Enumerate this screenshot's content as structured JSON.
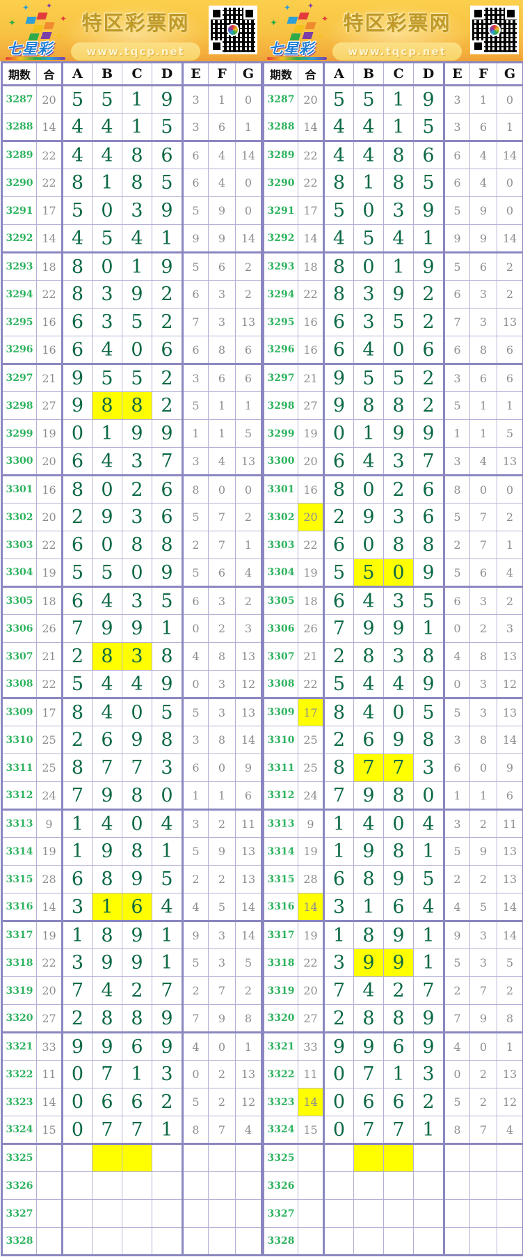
{
  "banner": {
    "site_title": "特区彩票网",
    "site_url": "www.tqcp.net",
    "logo_text": "七星彩"
  },
  "table": {
    "headers": {
      "period": "期数",
      "sum": "合",
      "cols": [
        "A",
        "B",
        "C",
        "D",
        "E",
        "F",
        "G"
      ]
    },
    "group_starts": [
      "3289",
      "3293",
      "3297",
      "3301",
      "3305",
      "3309",
      "3313",
      "3317",
      "3321",
      "3325"
    ],
    "rows": [
      {
        "period": "3287",
        "sum": "20",
        "vals": [
          "5",
          "5",
          "1",
          "9",
          "3",
          "1",
          "0"
        ]
      },
      {
        "period": "3288",
        "sum": "14",
        "vals": [
          "4",
          "4",
          "1",
          "5",
          "3",
          "6",
          "1"
        ]
      },
      {
        "period": "3289",
        "sum": "22",
        "vals": [
          "4",
          "4",
          "8",
          "6",
          "6",
          "4",
          "14"
        ]
      },
      {
        "period": "3290",
        "sum": "22",
        "vals": [
          "8",
          "1",
          "8",
          "5",
          "6",
          "4",
          "0"
        ]
      },
      {
        "period": "3291",
        "sum": "17",
        "vals": [
          "5",
          "0",
          "3",
          "9",
          "5",
          "9",
          "0"
        ]
      },
      {
        "period": "3292",
        "sum": "14",
        "vals": [
          "4",
          "5",
          "4",
          "1",
          "9",
          "9",
          "14"
        ]
      },
      {
        "period": "3293",
        "sum": "18",
        "vals": [
          "8",
          "0",
          "1",
          "9",
          "5",
          "6",
          "2"
        ]
      },
      {
        "period": "3294",
        "sum": "22",
        "vals": [
          "8",
          "3",
          "9",
          "2",
          "6",
          "3",
          "2"
        ]
      },
      {
        "period": "3295",
        "sum": "16",
        "vals": [
          "6",
          "3",
          "5",
          "2",
          "7",
          "3",
          "13"
        ]
      },
      {
        "period": "3296",
        "sum": "16",
        "vals": [
          "6",
          "4",
          "0",
          "6",
          "6",
          "8",
          "6"
        ]
      },
      {
        "period": "3297",
        "sum": "21",
        "vals": [
          "9",
          "5",
          "5",
          "2",
          "3",
          "6",
          "6"
        ]
      },
      {
        "period": "3298",
        "sum": "27",
        "vals": [
          "9",
          "8",
          "8",
          "2",
          "5",
          "1",
          "1"
        ]
      },
      {
        "period": "3299",
        "sum": "19",
        "vals": [
          "0",
          "1",
          "9",
          "9",
          "1",
          "1",
          "5"
        ]
      },
      {
        "period": "3300",
        "sum": "20",
        "vals": [
          "6",
          "4",
          "3",
          "7",
          "3",
          "4",
          "13"
        ]
      },
      {
        "period": "3301",
        "sum": "16",
        "vals": [
          "8",
          "0",
          "2",
          "6",
          "8",
          "0",
          "0"
        ]
      },
      {
        "period": "3302",
        "sum": "20",
        "vals": [
          "2",
          "9",
          "3",
          "6",
          "5",
          "7",
          "2"
        ]
      },
      {
        "period": "3303",
        "sum": "22",
        "vals": [
          "6",
          "0",
          "8",
          "8",
          "2",
          "7",
          "1"
        ]
      },
      {
        "period": "3304",
        "sum": "19",
        "vals": [
          "5",
          "5",
          "0",
          "9",
          "5",
          "6",
          "4"
        ]
      },
      {
        "period": "3305",
        "sum": "18",
        "vals": [
          "6",
          "4",
          "3",
          "5",
          "6",
          "3",
          "2"
        ]
      },
      {
        "period": "3306",
        "sum": "26",
        "vals": [
          "7",
          "9",
          "9",
          "1",
          "0",
          "2",
          "3"
        ]
      },
      {
        "period": "3307",
        "sum": "21",
        "vals": [
          "2",
          "8",
          "3",
          "8",
          "4",
          "8",
          "13"
        ]
      },
      {
        "period": "3308",
        "sum": "22",
        "vals": [
          "5",
          "4",
          "4",
          "9",
          "0",
          "3",
          "12"
        ]
      },
      {
        "period": "3309",
        "sum": "17",
        "vals": [
          "8",
          "4",
          "0",
          "5",
          "5",
          "3",
          "13"
        ]
      },
      {
        "period": "3310",
        "sum": "25",
        "vals": [
          "2",
          "6",
          "9",
          "8",
          "3",
          "8",
          "14"
        ]
      },
      {
        "period": "3311",
        "sum": "25",
        "vals": [
          "8",
          "7",
          "7",
          "3",
          "6",
          "0",
          "9"
        ]
      },
      {
        "period": "3312",
        "sum": "24",
        "vals": [
          "7",
          "9",
          "8",
          "0",
          "1",
          "1",
          "6"
        ]
      },
      {
        "period": "3313",
        "sum": "9",
        "vals": [
          "1",
          "4",
          "0",
          "4",
          "3",
          "2",
          "11"
        ]
      },
      {
        "period": "3314",
        "sum": "19",
        "vals": [
          "1",
          "9",
          "8",
          "1",
          "5",
          "9",
          "13"
        ]
      },
      {
        "period": "3315",
        "sum": "28",
        "vals": [
          "6",
          "8",
          "9",
          "5",
          "2",
          "2",
          "13"
        ]
      },
      {
        "period": "3316",
        "sum": "14",
        "vals": [
          "3",
          "1",
          "6",
          "4",
          "4",
          "5",
          "14"
        ]
      },
      {
        "period": "3317",
        "sum": "19",
        "vals": [
          "1",
          "8",
          "9",
          "1",
          "9",
          "3",
          "14"
        ]
      },
      {
        "period": "3318",
        "sum": "22",
        "vals": [
          "3",
          "9",
          "9",
          "1",
          "5",
          "3",
          "5"
        ]
      },
      {
        "period": "3319",
        "sum": "20",
        "vals": [
          "7",
          "4",
          "2",
          "7",
          "2",
          "7",
          "2"
        ]
      },
      {
        "period": "3320",
        "sum": "27",
        "vals": [
          "2",
          "8",
          "8",
          "9",
          "7",
          "9",
          "8"
        ]
      },
      {
        "period": "3321",
        "sum": "33",
        "vals": [
          "9",
          "9",
          "6",
          "9",
          "4",
          "0",
          "1"
        ]
      },
      {
        "period": "3322",
        "sum": "11",
        "vals": [
          "0",
          "7",
          "1",
          "3",
          "0",
          "2",
          "13"
        ]
      },
      {
        "period": "3323",
        "sum": "14",
        "vals": [
          "0",
          "6",
          "6",
          "2",
          "5",
          "2",
          "12"
        ]
      },
      {
        "period": "3324",
        "sum": "15",
        "vals": [
          "0",
          "7",
          "7",
          "1",
          "8",
          "7",
          "4"
        ]
      },
      {
        "period": "3325",
        "sum": "",
        "vals": [
          "",
          "",
          "",
          "",
          "",
          "",
          ""
        ]
      },
      {
        "period": "3326",
        "sum": "",
        "vals": [
          "",
          "",
          "",
          "",
          "",
          "",
          ""
        ]
      },
      {
        "period": "3327",
        "sum": "",
        "vals": [
          "",
          "",
          "",
          "",
          "",
          "",
          ""
        ]
      },
      {
        "period": "3328",
        "sum": "",
        "vals": [
          "",
          "",
          "",
          "",
          "",
          "",
          ""
        ]
      }
    ]
  },
  "panels": [
    {
      "name": "left",
      "highlights": {
        "3298": [
          "B",
          "C"
        ],
        "3307": [
          "B",
          "C"
        ],
        "3316": [
          "B",
          "C"
        ],
        "3325": [
          "B",
          "C"
        ]
      }
    },
    {
      "name": "right",
      "highlights": {
        "3302": [
          "sum"
        ],
        "3304": [
          "B",
          "C"
        ],
        "3309": [
          "sum"
        ],
        "3311": [
          "B",
          "C"
        ],
        "3316": [
          "sum"
        ],
        "3318": [
          "B",
          "C"
        ],
        "3323": [
          "sum"
        ],
        "3325": [
          "B",
          "C"
        ]
      }
    }
  ],
  "colors": {
    "highlight": "#ffff00",
    "period_green": "#2eb35f",
    "value_green": "#0c6a44",
    "muted_gray": "#8e8e90",
    "border_purple": "#8a87c0",
    "banner_gold": "#f8c243",
    "title_gold": "#c09a28"
  }
}
